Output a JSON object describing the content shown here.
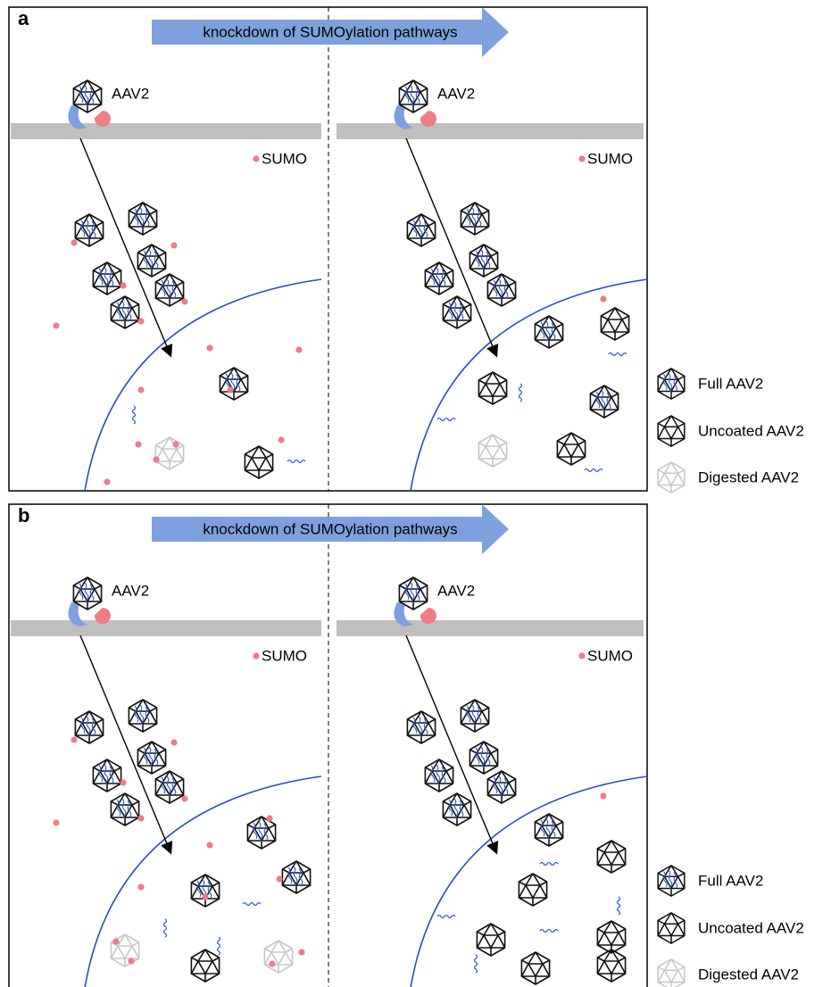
{
  "panels": [
    {
      "label": "a",
      "banner": "knockdown of SUMOylation pathways",
      "left": {
        "virus": "AAV2",
        "sumo": "SUMO"
      },
      "right": {
        "virus": "AAV2",
        "sumo": "SUMO"
      },
      "legend": [
        "Full AAV2",
        "Uncoated AAV2",
        "Digested AAV2"
      ]
    },
    {
      "label": "b",
      "banner": "knockdown of SUMOylation pathways",
      "left": {
        "virus": "AAV2",
        "sumo": "SUMO"
      },
      "right": {
        "virus": "AAV2",
        "sumo": "SUMO"
      },
      "legend": [
        "Full AAV2",
        "Uncoated AAV2",
        "Digested AAV2"
      ]
    }
  ]
}
